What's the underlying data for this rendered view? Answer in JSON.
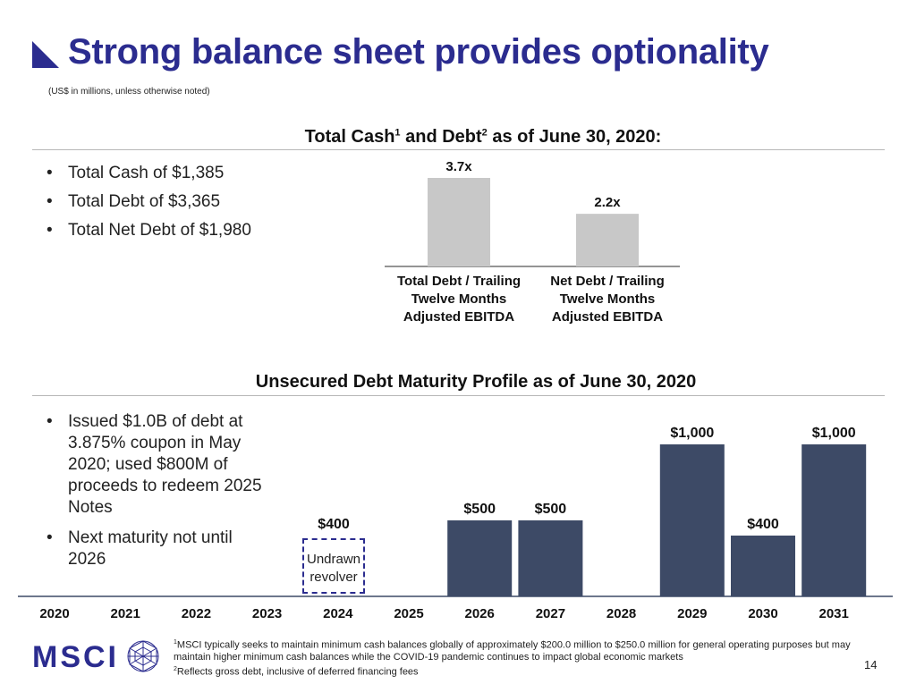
{
  "header": {
    "title": "Strong balance sheet provides optionality",
    "units_note": "(US$ in millions, unless otherwise noted)"
  },
  "cash_section": {
    "heading_part1": "Total Cash",
    "sup1": "1",
    "heading_part2": " and Debt",
    "sup2": "2",
    "heading_part3": " as of June 30, 2020:",
    "bullets": [
      "Total Cash of $1,385",
      "Total Debt of $3,365",
      "Total Net Debt of $1,980"
    ]
  },
  "maturity_section": {
    "heading": "Unsecured Debt Maturity Profile as of June 30, 2020",
    "bullets": [
      "Issued $1.0B of debt at 3.875% coupon in May 2020; used $800M of proceeds to redeem 2025 Notes",
      "Next maturity not until 2026"
    ]
  },
  "revolver": {
    "label": "Undrawn revolver",
    "value_label": "$400"
  },
  "chart_data": [
    {
      "type": "bar",
      "categories": [
        "Total Debt / Trailing Twelve Months Adjusted EBITDA",
        "Net Debt / Trailing Twelve Months Adjusted EBITDA"
      ],
      "values": [
        3.7,
        2.2
      ],
      "value_labels": [
        "3.7x",
        "2.2x"
      ],
      "colors": [
        "#c8c8c8"
      ],
      "ylim": [
        0,
        3.7
      ]
    },
    {
      "type": "bar",
      "categories": [
        "2020",
        "2021",
        "2022",
        "2023",
        "2024",
        "2025",
        "2026",
        "2027",
        "2028",
        "2029",
        "2030",
        "2031"
      ],
      "values": [
        0,
        0,
        0,
        0,
        400,
        0,
        500,
        500,
        0,
        1000,
        400,
        1000
      ],
      "value_labels": [
        "",
        "",
        "",
        "",
        "$400",
        "",
        "$500",
        "$500",
        "",
        "$1,000",
        "$400",
        "$1,000"
      ],
      "bar_style": [
        "none",
        "none",
        "none",
        "none",
        "dashed",
        "none",
        "solid",
        "solid",
        "none",
        "solid",
        "solid",
        "solid"
      ],
      "colors": [
        "#3d4a66",
        "#2b2c8f"
      ],
      "ylim": [
        0,
        1000
      ]
    }
  ],
  "footer": {
    "logo": "MSCI",
    "footnote1_sup": "1",
    "footnote1": "MSCI typically seeks to maintain minimum cash balances globally of approximately $200.0 million to $250.0 million for general operating purposes but may maintain higher minimum cash balances while the COVID-19 pandemic continues to impact global economic markets",
    "footnote2_sup": "2",
    "footnote2": "Reflects gross debt, inclusive of deferred financing fees",
    "page_number": "14"
  }
}
